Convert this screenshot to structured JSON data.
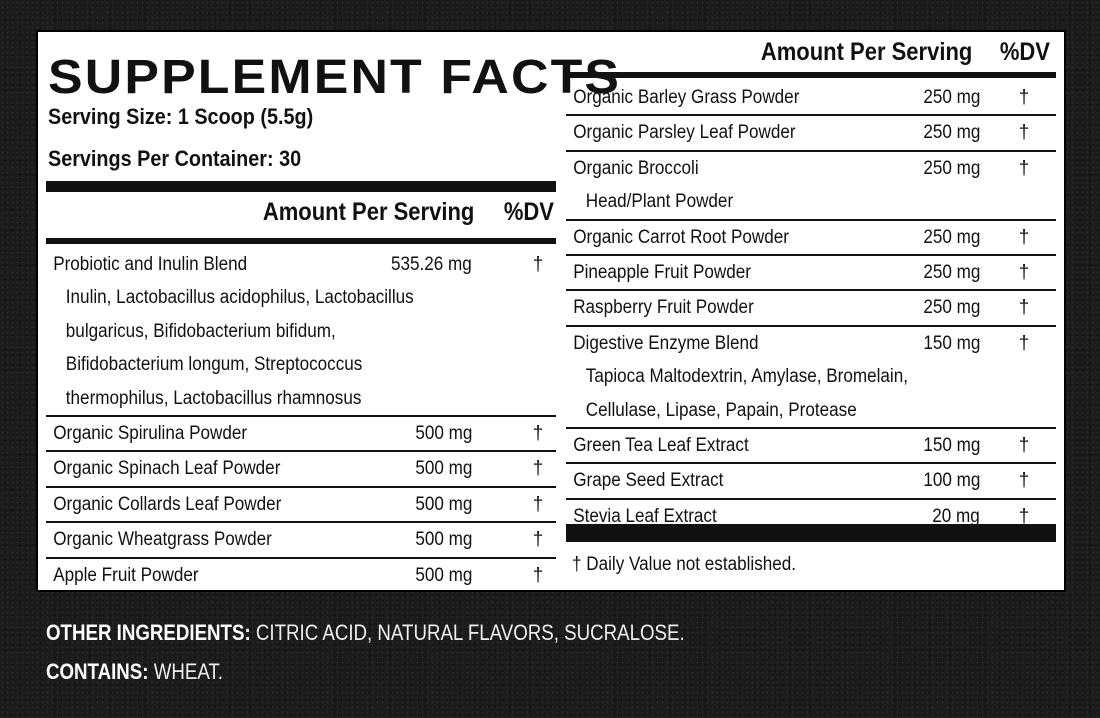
{
  "title": "SUPPLEMENT FACTS",
  "serving_size": "Serving Size: 1 Scoop (5.5g)",
  "servings_per_container": "Servings Per Container: 30",
  "header": {
    "amount": "Amount Per Serving",
    "dv": "%DV"
  },
  "left_rows": [
    {
      "name": "Probiotic and Inulin Blend",
      "amount": "535.26 mg",
      "dv": "†",
      "sub": [
        "Inulin, Lactobacillus acidophilus, Lactobacillus",
        "bulgaricus, Bifidobacterium bifidum,",
        "Bifidobacterium longum, Streptococcus",
        "thermophilus, Lactobacillus rhamnosus"
      ]
    },
    {
      "name": "Organic Spirulina Powder",
      "amount": "500 mg",
      "dv": "†",
      "sub": []
    },
    {
      "name": "Organic Spinach Leaf Powder",
      "amount": "500 mg",
      "dv": "†",
      "sub": []
    },
    {
      "name": "Organic Collards Leaf Powder",
      "amount": "500 mg",
      "dv": "†",
      "sub": []
    },
    {
      "name": "Organic Wheatgrass Powder",
      "amount": "500 mg",
      "dv": "†",
      "sub": []
    },
    {
      "name": "Apple Fruit Powder",
      "amount": "500 mg",
      "dv": "†",
      "sub": []
    }
  ],
  "right_rows": [
    {
      "name": "Organic Barley Grass Powder",
      "amount": "250 mg",
      "dv": "†",
      "sub": []
    },
    {
      "name": "Organic Parsley Leaf Powder",
      "amount": "250 mg",
      "dv": "†",
      "sub": []
    },
    {
      "name": "Organic Broccoli",
      "amount": "250 mg",
      "dv": "†",
      "sub": [
        "Head/Plant Powder"
      ]
    },
    {
      "name": "Organic Carrot Root Powder",
      "amount": "250 mg",
      "dv": "†",
      "sub": []
    },
    {
      "name": "Pineapple Fruit Powder",
      "amount": "250 mg",
      "dv": "†",
      "sub": []
    },
    {
      "name": "Raspberry Fruit Powder",
      "amount": "250 mg",
      "dv": "†",
      "sub": []
    },
    {
      "name": "Digestive Enzyme Blend",
      "amount": "150 mg",
      "dv": "†",
      "sub": [
        "Tapioca Maltodextrin, Amylase, Bromelain,",
        "Cellulase, Lipase, Papain, Protease"
      ]
    },
    {
      "name": "Green Tea Leaf Extract",
      "amount": "150 mg",
      "dv": "†",
      "sub": []
    },
    {
      "name": "Grape Seed Extract",
      "amount": "100 mg",
      "dv": "†",
      "sub": []
    },
    {
      "name": "Stevia Leaf Extract",
      "amount": "20 mg",
      "dv": "†",
      "sub": []
    }
  ],
  "footnote": "† Daily Value not established.",
  "other_ingredients": {
    "label": "OTHER INGREDIENTS:",
    "value": " CITRIC ACID, NATURAL FLAVORS, SUCRALOSE."
  },
  "contains": {
    "label": "CONTAINS:",
    "value": " WHEAT."
  }
}
